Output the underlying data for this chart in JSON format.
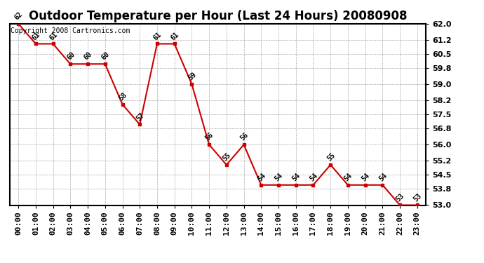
{
  "title": "Outdoor Temperature per Hour (Last 24 Hours) 20080908",
  "copyright_text": "Copyright 2008 Cartronics.com",
  "hours": [
    "00:00",
    "01:00",
    "02:00",
    "03:00",
    "04:00",
    "05:00",
    "06:00",
    "07:00",
    "08:00",
    "09:00",
    "10:00",
    "11:00",
    "12:00",
    "13:00",
    "14:00",
    "15:00",
    "16:00",
    "17:00",
    "18:00",
    "19:00",
    "20:00",
    "21:00",
    "22:00",
    "23:00"
  ],
  "temps": [
    62,
    61,
    61,
    60,
    60,
    60,
    58,
    57,
    61,
    61,
    59,
    56,
    55,
    56,
    54,
    54,
    54,
    54,
    55,
    54,
    54,
    54,
    53,
    53
  ],
  "line_color": "#cc0000",
  "marker_color": "#cc0000",
  "bg_color": "#ffffff",
  "grid_color": "#aaaaaa",
  "ylim_min": 53.0,
  "ylim_max": 62.0,
  "yticks": [
    53.0,
    53.8,
    54.5,
    55.2,
    56.0,
    56.8,
    57.5,
    58.2,
    59.0,
    59.8,
    60.5,
    61.2,
    62.0
  ],
  "title_fontsize": 12,
  "label_fontsize": 7,
  "tick_fontsize": 8,
  "copyright_fontsize": 7
}
